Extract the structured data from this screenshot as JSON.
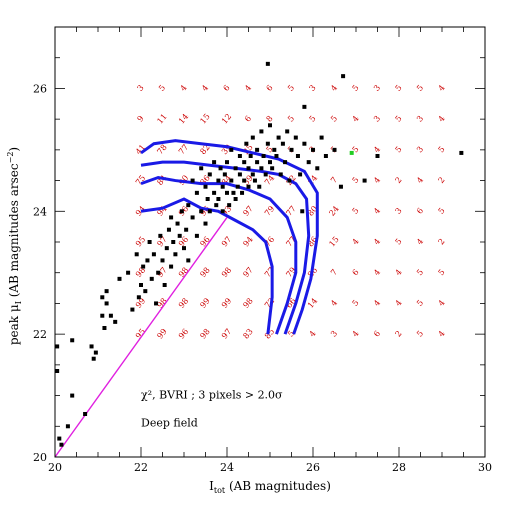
{
  "chart_data": {
    "type": "scatter",
    "xlabel": "I_tot (AB magnitudes)",
    "xlabel_main": "I",
    "xlabel_sub": "tot",
    "xlabel_rest": " (AB magnitudes)",
    "ylabel": "peak μ_I (AB magnitudes arsec⁻²)",
    "ylabel_main": "peak μ",
    "ylabel_sub": "I",
    "ylabel_rest": "  (AB magnitudes arsec",
    "ylabel_sup": "−2",
    "ylabel_close": ")",
    "xlim": [
      20,
      30
    ],
    "ylim": [
      20,
      27
    ],
    "xticks": [
      20,
      22,
      24,
      26,
      28,
      30
    ],
    "xtick_labels": [
      "20",
      "22",
      "24",
      "26",
      "28",
      "30"
    ],
    "yticks": [
      20,
      22,
      24,
      26
    ],
    "ytick_labels": [
      "20",
      "22",
      "24",
      "26"
    ],
    "xminor_step": 0.5,
    "yminor_step": 0.5,
    "grid": false,
    "annotations": [
      {
        "text": "χ², BVRI ; 3 pixels > 2.0σ",
        "x": 22.0,
        "y": 20.95
      },
      {
        "text": "Deep field",
        "x": 22.0,
        "y": 20.5
      }
    ],
    "detection_grid": {
      "x": [
        22,
        22.5,
        23,
        23.5,
        24,
        24.5,
        25,
        25.5,
        26,
        26.5,
        27,
        27.5,
        28,
        28.5,
        29
      ],
      "y": [
        26,
        25.5,
        25,
        24.5,
        24,
        23.5,
        23,
        22.5,
        22
      ],
      "values": [
        [
          "3",
          "5",
          "4",
          "4",
          "6",
          "4",
          "6",
          "5",
          "3",
          "4",
          "5",
          "3",
          "5",
          "5",
          "4"
        ],
        [
          "9",
          "11",
          "14",
          "15",
          "12",
          "6",
          "8",
          "5",
          "5",
          "5",
          "4",
          "3",
          "5",
          "3",
          "4"
        ],
        [
          "41",
          "78",
          "77",
          "82",
          "39",
          "25",
          "5",
          "5",
          "3",
          "5",
          "5",
          "4",
          "5",
          "3",
          "5"
        ],
        [
          "75",
          "84",
          "90",
          "86",
          "84",
          "59",
          "74",
          "22",
          "14",
          "7",
          "5",
          "4",
          "2",
          "4",
          "2"
        ],
        [
          "94",
          "94",
          "96",
          "96",
          "93",
          "97",
          "79",
          "77",
          "80",
          "24",
          "5",
          "4",
          "3",
          "6",
          "5"
        ],
        [
          "95",
          "97",
          "96",
          "96",
          "97",
          "94",
          "76",
          "77",
          "86",
          "15",
          "4",
          "4",
          "5",
          "4",
          "2"
        ],
        [
          "98",
          "97",
          "98",
          "98",
          "98",
          "97",
          "77",
          "79",
          "86",
          "7",
          "6",
          "4",
          "4",
          "5",
          "5"
        ],
        [
          "99",
          "98",
          "98",
          "99",
          "99",
          "98",
          "72",
          "66",
          "14",
          "4",
          "5",
          "4",
          "4",
          "5",
          "4"
        ],
        [
          "95",
          "99",
          "96",
          "98",
          "97",
          "83",
          "85",
          "5",
          "4",
          "3",
          "4",
          "6",
          "2",
          "5",
          "4"
        ]
      ]
    },
    "series": [
      {
        "name": "",
        "kind": "points",
        "color": "#000000",
        "points": [
          [
            20.05,
            21.4
          ],
          [
            20.1,
            20.3
          ],
          [
            20.15,
            20.2
          ],
          [
            20.05,
            21.8
          ],
          [
            20.3,
            20.5
          ],
          [
            20.4,
            21.9
          ],
          [
            20.4,
            21.0
          ],
          [
            20.7,
            20.7
          ],
          [
            20.85,
            21.8
          ],
          [
            20.9,
            21.6
          ],
          [
            20.95,
            21.7
          ],
          [
            21.1,
            22.3
          ],
          [
            21.1,
            22.6
          ],
          [
            21.15,
            22.1
          ],
          [
            21.2,
            22.5
          ],
          [
            21.2,
            22.7
          ],
          [
            21.3,
            22.3
          ],
          [
            21.4,
            22.2
          ],
          [
            21.5,
            22.9
          ],
          [
            21.7,
            23.0
          ],
          [
            21.8,
            22.4
          ],
          [
            21.9,
            23.3
          ],
          [
            21.95,
            22.6
          ],
          [
            22.0,
            22.8
          ],
          [
            22.05,
            23.1
          ],
          [
            22.1,
            22.7
          ],
          [
            22.15,
            23.2
          ],
          [
            22.2,
            23.5
          ],
          [
            22.25,
            22.9
          ],
          [
            22.3,
            23.3
          ],
          [
            22.35,
            22.5
          ],
          [
            22.4,
            23.0
          ],
          [
            22.45,
            23.6
          ],
          [
            22.5,
            23.2
          ],
          [
            22.55,
            22.8
          ],
          [
            22.6,
            23.4
          ],
          [
            22.65,
            23.7
          ],
          [
            22.7,
            23.1
          ],
          [
            22.7,
            23.9
          ],
          [
            22.75,
            23.5
          ],
          [
            22.8,
            23.3
          ],
          [
            22.85,
            23.8
          ],
          [
            22.9,
            23.6
          ],
          [
            22.95,
            24.0
          ],
          [
            23.0,
            23.4
          ],
          [
            23.05,
            23.7
          ],
          [
            23.1,
            24.1
          ],
          [
            23.1,
            23.2
          ],
          [
            23.2,
            23.9
          ],
          [
            23.2,
            24.5
          ],
          [
            23.3,
            23.6
          ],
          [
            23.3,
            24.3
          ],
          [
            23.4,
            24.0
          ],
          [
            23.4,
            24.7
          ],
          [
            23.5,
            23.8
          ],
          [
            23.5,
            24.4
          ],
          [
            23.55,
            24.2
          ],
          [
            23.6,
            24.6
          ],
          [
            23.6,
            24.0
          ],
          [
            23.7,
            24.3
          ],
          [
            23.7,
            24.8
          ],
          [
            23.75,
            24.1
          ],
          [
            23.8,
            24.5
          ],
          [
            23.8,
            24.2
          ],
          [
            23.85,
            24.7
          ],
          [
            23.9,
            24.4
          ],
          [
            23.9,
            24.0
          ],
          [
            23.95,
            24.6
          ],
          [
            24.0,
            24.3
          ],
          [
            24.0,
            24.8
          ],
          [
            24.05,
            24.1
          ],
          [
            24.1,
            24.5
          ],
          [
            24.1,
            25.0
          ],
          [
            24.15,
            24.3
          ],
          [
            24.2,
            24.7
          ],
          [
            24.2,
            24.2
          ],
          [
            24.25,
            24.4
          ],
          [
            24.3,
            24.9
          ],
          [
            24.3,
            24.6
          ],
          [
            24.35,
            24.3
          ],
          [
            24.4,
            24.8
          ],
          [
            24.4,
            24.5
          ],
          [
            24.45,
            25.1
          ],
          [
            24.5,
            24.4
          ],
          [
            24.5,
            24.7
          ],
          [
            24.55,
            24.9
          ],
          [
            24.6,
            24.6
          ],
          [
            24.6,
            25.2
          ],
          [
            24.65,
            24.5
          ],
          [
            24.7,
            24.8
          ],
          [
            24.7,
            25.0
          ],
          [
            24.75,
            24.4
          ],
          [
            24.8,
            24.7
          ],
          [
            24.8,
            25.3
          ],
          [
            24.85,
            24.9
          ],
          [
            24.9,
            24.6
          ],
          [
            24.95,
            25.1
          ],
          [
            25.0,
            24.8
          ],
          [
            25.0,
            25.4
          ],
          [
            25.05,
            24.7
          ],
          [
            25.1,
            25.0
          ],
          [
            25.15,
            24.9
          ],
          [
            25.2,
            25.2
          ],
          [
            25.25,
            24.6
          ],
          [
            25.3,
            25.1
          ],
          [
            25.35,
            24.8
          ],
          [
            25.4,
            25.3
          ],
          [
            25.45,
            24.5
          ],
          [
            25.5,
            25.0
          ],
          [
            25.6,
            25.2
          ],
          [
            25.65,
            24.9
          ],
          [
            25.7,
            24.6
          ],
          [
            25.75,
            24.0
          ],
          [
            25.8,
            25.1
          ],
          [
            25.9,
            24.8
          ],
          [
            26.0,
            25.0
          ],
          [
            26.1,
            24.7
          ],
          [
            26.2,
            25.2
          ],
          [
            26.3,
            24.9
          ],
          [
            26.5,
            25.0
          ],
          [
            26.65,
            24.4
          ],
          [
            27.2,
            24.5
          ],
          [
            27.5,
            24.9
          ],
          [
            26.7,
            26.2
          ],
          [
            24.95,
            26.4
          ],
          [
            25.8,
            25.7
          ],
          [
            29.45,
            24.95
          ]
        ]
      },
      {
        "name": "",
        "kind": "highlight",
        "color": "#22cc22",
        "points": [
          [
            26.9,
            24.95
          ]
        ]
      },
      {
        "name": "",
        "kind": "line",
        "color": "#e020e0",
        "points": [
          [
            20.0,
            20.0
          ],
          [
            24.0,
            23.9
          ]
        ]
      },
      {
        "name": "",
        "kind": "curve",
        "color": "#1a1ae6",
        "points": [
          [
            22.0,
            24.0
          ],
          [
            22.5,
            24.05
          ],
          [
            23.0,
            24.2
          ],
          [
            23.4,
            24.05
          ],
          [
            23.8,
            24.0
          ],
          [
            24.2,
            23.85
          ],
          [
            24.6,
            23.7
          ],
          [
            24.9,
            23.5
          ],
          [
            25.05,
            23.1
          ],
          [
            25.05,
            22.6
          ],
          [
            24.95,
            22.0
          ]
        ]
      },
      {
        "name": "",
        "kind": "curve",
        "color": "#1a1ae6",
        "points": [
          [
            22.0,
            24.45
          ],
          [
            22.4,
            24.55
          ],
          [
            22.8,
            24.5
          ],
          [
            23.4,
            24.45
          ],
          [
            24.0,
            24.45
          ],
          [
            24.5,
            24.35
          ],
          [
            25.0,
            24.2
          ],
          [
            25.4,
            23.9
          ],
          [
            25.6,
            23.5
          ],
          [
            25.6,
            23.0
          ],
          [
            25.4,
            22.5
          ],
          [
            25.15,
            22.0
          ]
        ]
      },
      {
        "name": "",
        "kind": "curve",
        "color": "#1a1ae6",
        "points": [
          [
            22.0,
            24.75
          ],
          [
            22.5,
            24.8
          ],
          [
            23.0,
            24.8
          ],
          [
            23.6,
            24.75
          ],
          [
            24.2,
            24.7
          ],
          [
            24.8,
            24.65
          ],
          [
            25.2,
            24.6
          ],
          [
            25.6,
            24.45
          ],
          [
            25.85,
            24.2
          ],
          [
            25.9,
            23.6
          ],
          [
            25.8,
            23.0
          ],
          [
            25.6,
            22.5
          ],
          [
            25.35,
            22.0
          ]
        ]
      },
      {
        "name": "",
        "kind": "curve",
        "color": "#1a1ae6",
        "points": [
          [
            22.0,
            24.95
          ],
          [
            22.3,
            25.1
          ],
          [
            22.8,
            25.15
          ],
          [
            23.4,
            25.1
          ],
          [
            24.0,
            25.05
          ],
          [
            24.6,
            24.95
          ],
          [
            25.2,
            24.85
          ],
          [
            25.8,
            24.65
          ],
          [
            26.1,
            24.3
          ],
          [
            26.1,
            23.6
          ],
          [
            25.95,
            22.9
          ],
          [
            25.75,
            22.4
          ],
          [
            25.55,
            22.0
          ]
        ]
      }
    ]
  }
}
